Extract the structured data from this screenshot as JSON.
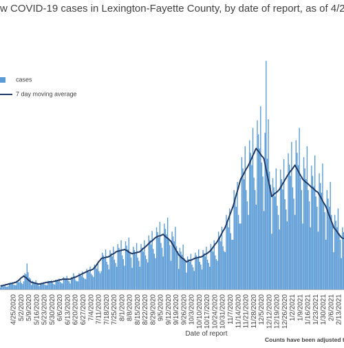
{
  "chart_data": {
    "type": "bar",
    "title": "w COVID-19 cases in Lexington-Fayette County, by date of report, as of 4/2",
    "x_label": "Date of report",
    "note": "Counts have been adjusted to",
    "ylim": [
      0,
      500
    ],
    "categories": [
      null,
      null,
      null,
      null,
      null,
      null,
      null,
      null,
      null,
      null,
      null,
      null,
      "4/25/2020",
      null,
      null,
      null,
      null,
      null,
      null,
      "5/2/2020",
      null,
      null,
      null,
      null,
      null,
      null,
      "5/9/2020",
      null,
      null,
      null,
      null,
      null,
      null,
      "5/16/2020",
      null,
      null,
      null,
      null,
      null,
      null,
      "5/23/2020",
      null,
      null,
      null,
      null,
      null,
      null,
      "5/30/2020",
      null,
      null,
      null,
      null,
      null,
      null,
      "6/6/2020",
      null,
      null,
      null,
      null,
      null,
      null,
      "6/13/2020",
      null,
      null,
      null,
      null,
      null,
      null,
      "6/20/2020",
      null,
      null,
      null,
      null,
      null,
      null,
      "6/27/2020",
      null,
      null,
      null,
      null,
      null,
      null,
      "7/4/2020",
      null,
      null,
      null,
      null,
      null,
      null,
      "7/11/2020",
      null,
      null,
      null,
      null,
      null,
      null,
      "7/18/2020",
      null,
      null,
      null,
      null,
      null,
      null,
      "7/25/2020",
      null,
      null,
      null,
      null,
      null,
      null,
      "8/1/2020",
      null,
      null,
      null,
      null,
      null,
      null,
      "8/8/2020",
      null,
      null,
      null,
      null,
      null,
      null,
      "8/15/2020",
      null,
      null,
      null,
      null,
      null,
      null,
      "8/22/2020",
      null,
      null,
      null,
      null,
      null,
      null,
      "8/29/2020",
      null,
      null,
      null,
      null,
      null,
      null,
      "9/5/2020",
      null,
      null,
      null,
      null,
      null,
      null,
      "9/12/2020",
      null,
      null,
      null,
      null,
      null,
      null,
      "9/19/2020",
      null,
      null,
      null,
      null,
      null,
      null,
      "9/26/2020",
      null,
      null,
      null,
      null,
      null,
      null,
      "10/3/2020",
      null,
      null,
      null,
      null,
      null,
      null,
      "10/10/2020",
      null,
      null,
      null,
      null,
      null,
      null,
      "10/17/2020",
      null,
      null,
      null,
      null,
      null,
      null,
      "10/24/2020",
      null,
      null,
      null,
      null,
      null,
      null,
      "10/31/2020",
      null,
      null,
      null,
      null,
      null,
      null,
      "11/7/2020",
      null,
      null,
      null,
      null,
      null,
      null,
      "11/14/2020",
      null,
      null,
      null,
      null,
      null,
      null,
      "11/21/2020",
      null,
      null,
      null,
      null,
      null,
      null,
      "11/28/2020",
      null,
      null,
      null,
      null,
      null,
      null,
      "12/5/2020",
      null,
      null,
      null,
      null,
      null,
      null,
      "12/12/2020",
      null,
      null,
      null,
      null,
      null,
      null,
      "12/19/2020",
      null,
      null,
      null,
      null,
      null,
      null,
      "12/26/2020",
      null,
      null,
      null,
      null,
      null,
      null,
      "1/2/2021",
      null,
      null,
      null,
      null,
      null,
      null,
      "1/9/2021",
      null,
      null,
      null,
      null,
      null,
      null,
      "1/16/2021",
      null,
      null,
      null,
      null,
      null,
      null,
      "1/23/2021",
      null,
      null,
      null,
      null,
      null,
      null,
      "1/30/2021",
      null,
      null,
      null,
      null,
      null,
      null,
      "2/6/2021",
      null,
      null,
      null,
      null,
      null,
      null,
      "2/13/2021",
      null,
      null,
      null,
      null
    ],
    "series": [
      {
        "name": "cases",
        "type": "bar",
        "color": "#5b9bd5",
        "values": [
          4,
          7,
          7,
          6,
          8,
          5,
          5,
          6,
          12,
          11,
          10,
          13,
          9,
          8,
          8,
          16,
          14,
          13,
          17,
          12,
          10,
          15,
          30,
          28,
          48,
          32,
          22,
          20,
          8,
          16,
          14,
          13,
          17,
          12,
          10,
          6,
          12,
          11,
          10,
          13,
          9,
          8,
          8,
          16,
          14,
          13,
          17,
          12,
          10,
          9,
          18,
          17,
          15,
          20,
          14,
          12,
          11,
          23,
          21,
          19,
          25,
          17,
          15,
          11,
          23,
          21,
          30,
          25,
          17,
          15,
          15,
          30,
          28,
          25,
          33,
          22,
          20,
          19,
          38,
          35,
          32,
          42,
          29,
          26,
          23,
          46,
          42,
          38,
          49,
          34,
          30,
          34,
          68,
          63,
          57,
          74,
          51,
          46,
          37,
          73,
          67,
          61,
          79,
          55,
          49,
          42,
          84,
          77,
          70,
          91,
          63,
          56,
          44,
          89,
          81,
          74,
          96,
          67,
          59,
          40,
          79,
          73,
          66,
          86,
          59,
          53,
          42,
          84,
          77,
          70,
          91,
          63,
          56,
          50,
          100,
          91,
          83,
          108,
          75,
          66,
          58,
          115,
          106,
          96,
          125,
          86,
          77,
          61,
          122,
          112,
          102,
          133,
          92,
          82,
          53,
          107,
          98,
          89,
          116,
          80,
          71,
          38,
          77,
          70,
          64,
          83,
          58,
          51,
          31,
          61,
          56,
          51,
          66,
          46,
          41,
          34,
          68,
          63,
          57,
          74,
          51,
          46,
          37,
          73,
          67,
          61,
          79,
          55,
          49,
          42,
          84,
          77,
          70,
          91,
          63,
          56,
          53,
          107,
          98,
          89,
          116,
          80,
          71,
          69,
          138,
          127,
          115,
          150,
          104,
          92,
          92,
          184,
          168,
          153,
          199,
          138,
          122,
          122,
          245,
          224,
          204,
          265,
          184,
          163,
          138,
          276,
          253,
          230,
          299,
          207,
          184,
          157,
          313,
          287,
          261,
          339,
          235,
          209,
          145,
          290,
          423,
          242,
          315,
          218,
          194,
          103,
          206,
          189,
          172,
          224,
          155,
          138,
          111,
          222,
          204,
          185,
          241,
          167,
          148,
          126,
          252,
          231,
          210,
          273,
          189,
          168,
          138,
          276,
          253,
          230,
          299,
          207,
          184,
          122,
          245,
          224,
          204,
          265,
          184,
          163,
          115,
          229,
          210,
          191,
          248,
          172,
          153,
          107,
          215,
          197,
          179,
          233,
          161,
          143,
          92,
          184,
          168,
          153,
          199,
          138,
          122,
          69,
          138,
          127,
          115,
          150,
          104,
          92,
          58,
          115,
          106
        ]
      },
      {
        "name": "7 day moving average",
        "type": "line",
        "color": "#1f3864",
        "values": [
          6,
          7,
          7,
          8,
          8,
          9,
          9,
          10,
          10,
          11,
          11,
          12,
          12,
          13,
          13,
          15,
          16,
          18,
          20,
          22,
          23,
          25,
          23,
          22,
          20,
          18,
          16,
          15,
          13,
          13,
          12,
          12,
          11,
          11,
          10,
          10,
          10,
          11,
          11,
          12,
          12,
          13,
          13,
          13,
          14,
          14,
          14,
          14,
          15,
          15,
          16,
          16,
          17,
          17,
          18,
          18,
          19,
          19,
          19,
          19,
          19,
          19,
          19,
          19,
          20,
          21,
          22,
          22,
          23,
          24,
          25,
          26,
          27,
          28,
          29,
          30,
          31,
          32,
          33,
          34,
          35,
          35,
          36,
          37,
          38,
          41,
          43,
          46,
          49,
          52,
          54,
          57,
          58,
          58,
          59,
          59,
          60,
          60,
          61,
          62,
          64,
          65,
          66,
          67,
          69,
          70,
          71,
          71,
          72,
          72,
          73,
          73,
          74,
          73,
          72,
          71,
          69,
          68,
          67,
          66,
          67,
          67,
          68,
          68,
          69,
          69,
          70,
          72,
          74,
          76,
          77,
          79,
          81,
          83,
          85,
          87,
          89,
          90,
          92,
          94,
          96,
          97,
          98,
          99,
          99,
          100,
          101,
          102,
          100,
          98,
          96,
          95,
          93,
          91,
          89,
          85,
          82,
          78,
          75,
          71,
          68,
          64,
          62,
          60,
          58,
          57,
          55,
          53,
          51,
          52,
          53,
          54,
          54,
          55,
          56,
          57,
          58,
          58,
          59,
          59,
          60,
          60,
          61,
          62,
          64,
          65,
          66,
          67,
          69,
          70,
          73,
          75,
          78,
          81,
          84,
          86,
          89,
          93,
          96,
          100,
          104,
          108,
          111,
          115,
          120,
          126,
          131,
          137,
          142,
          148,
          153,
          160,
          168,
          175,
          182,
          189,
          197,
          204,
          208,
          211,
          215,
          219,
          223,
          226,
          230,
          234,
          239,
          243,
          248,
          252,
          257,
          261,
          258,
          256,
          253,
          250,
          247,
          245,
          242,
          232,
          222,
          212,
          202,
          192,
          182,
          172,
          174,
          176,
          178,
          179,
          181,
          183,
          185,
          189,
          192,
          196,
          199,
          203,
          206,
          210,
          213,
          216,
          219,
          221,
          224,
          227,
          230,
          226,
          223,
          219,
          215,
          211,
          208,
          204,
          202,
          200,
          198,
          197,
          195,
          193,
          191,
          189,
          188,
          186,
          184,
          182,
          181,
          179,
          175,
          172,
          168,
          164,
          160,
          157,
          153,
          148,
          142,
          137,
          132,
          126,
          121,
          115,
          112,
          110,
          107,
          104,
          101,
          99,
          96,
          95,
          94
        ]
      }
    ]
  }
}
